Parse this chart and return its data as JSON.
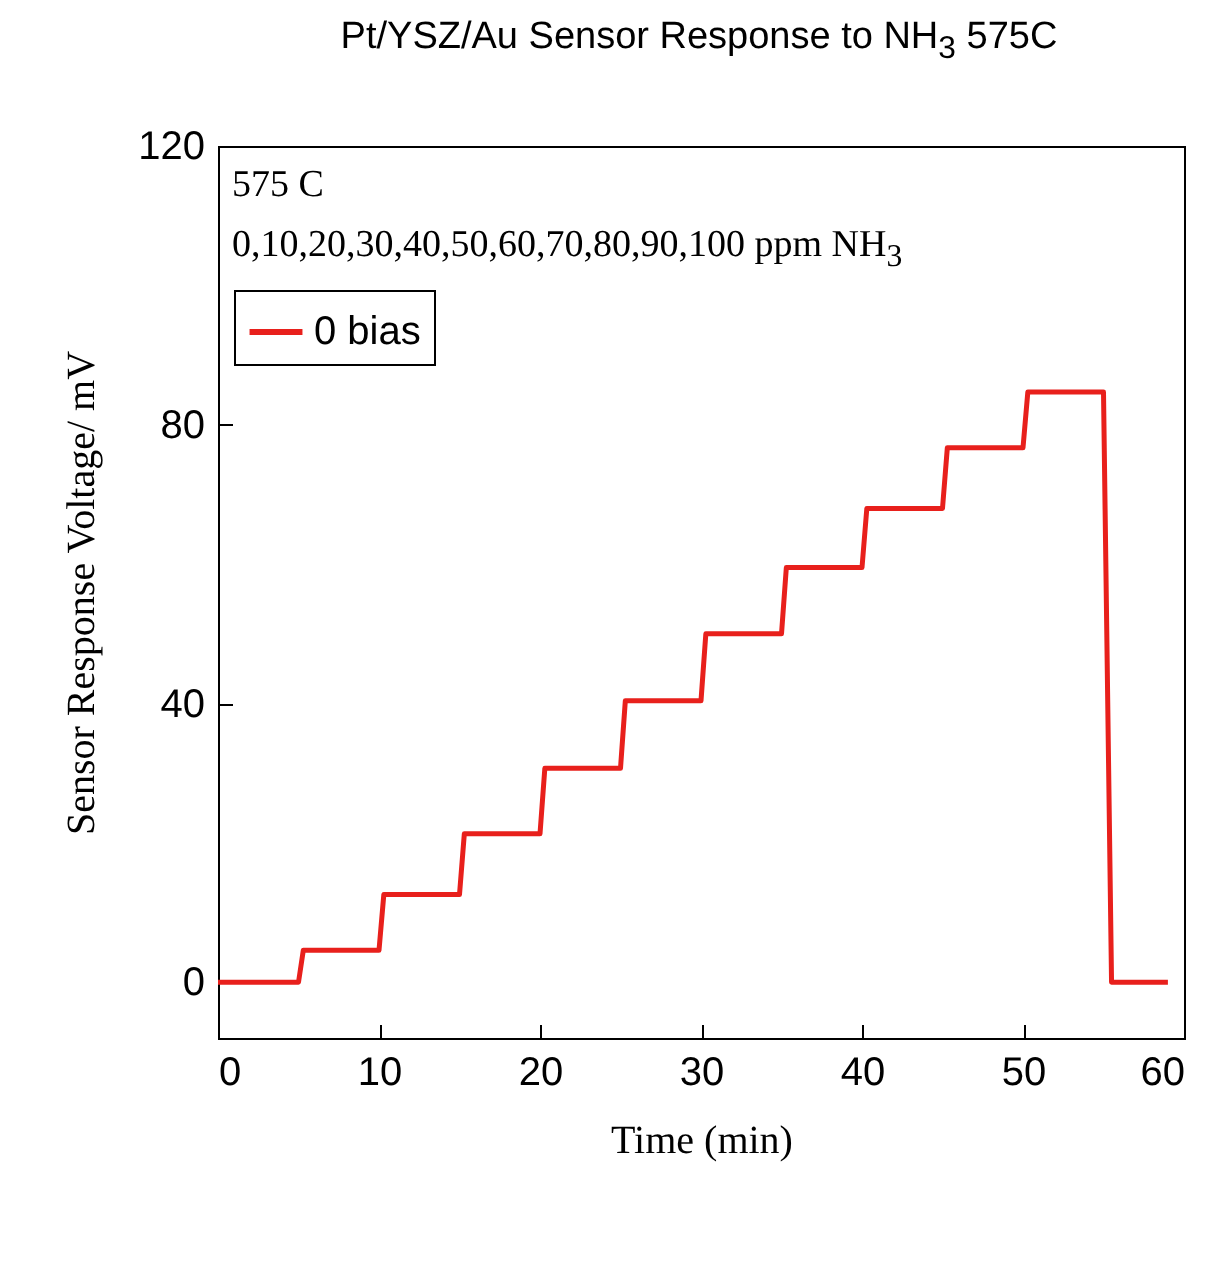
{
  "chart_data": {
    "type": "line",
    "title": "Pt/YSZ/Au Sensor Response to NH$_{3}$ 575C",
    "xlabel": "Time (min)",
    "ylabel": "Sensor Response Voltage/ mV",
    "annotations": [
      "575 C",
      "0,10,20,30,40,50,60,70,80,90,100 ppm NH$_{3}$"
    ],
    "series": [
      {
        "name": "0 bias",
        "color": "#e8201c",
        "x": [
          0,
          5,
          5.3,
          10,
          10.3,
          15,
          15.3,
          20,
          20.3,
          25,
          25.3,
          30,
          30.3,
          35,
          35.3,
          40,
          40.3,
          45,
          45.3,
          50,
          50.3,
          55,
          55.5,
          59
        ],
        "values": [
          0,
          0,
          4.6,
          4.6,
          12.6,
          12.6,
          21.3,
          21.3,
          30.7,
          30.7,
          40.4,
          40.4,
          50,
          50,
          59.5,
          59.5,
          68,
          68,
          76.7,
          76.7,
          84.7,
          84.7,
          0,
          0
        ]
      }
    ],
    "xlim": [
      0,
      60
    ],
    "xticks": [
      0,
      10,
      20,
      30,
      40,
      50,
      60
    ],
    "ylim": [
      -8,
      120
    ],
    "yticks": [
      0,
      40,
      80,
      120
    ],
    "legend": "top left",
    "marker": "none",
    "line_style": "solid",
    "grid": false
  }
}
